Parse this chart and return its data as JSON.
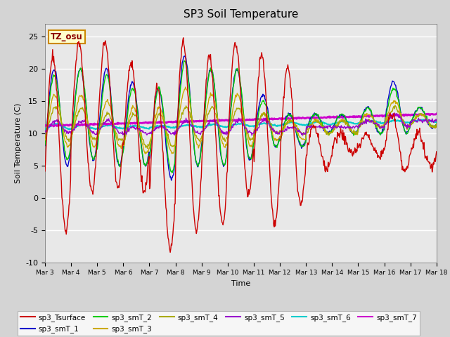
{
  "title": "SP3 Soil Temperature",
  "xlabel": "Time",
  "ylabel": "Soil Temperature (C)",
  "ylim": [
    -10,
    27
  ],
  "xlim": [
    0,
    15
  ],
  "annotation": "TZ_osu",
  "bg_color": "#e8e8e8",
  "xtick_labels": [
    "Mar 3",
    "Mar 4",
    "Mar 5",
    "Mar 6",
    "Mar 7",
    "Mar 8",
    "Mar 9",
    "Mar 10",
    "Mar 11",
    "Mar 12",
    "Mar 13",
    "Mar 14",
    "Mar 15",
    "Mar 16",
    "Mar 17",
    "Mar 18"
  ],
  "xtick_positions": [
    0,
    1,
    2,
    3,
    4,
    5,
    6,
    7,
    8,
    9,
    10,
    11,
    12,
    13,
    14,
    15
  ],
  "ytick_labels": [
    "-10",
    "-5",
    "0",
    "5",
    "10",
    "15",
    "20",
    "25"
  ],
  "ytick_positions": [
    -10,
    -5,
    0,
    5,
    10,
    15,
    20,
    25
  ],
  "series_colors": {
    "sp3_Tsurface": "#cc0000",
    "sp3_smT_1": "#0000cc",
    "sp3_smT_2": "#00cc00",
    "sp3_smT_3": "#ccaa00",
    "sp3_smT_4": "#aaaa00",
    "sp3_smT_5": "#9900cc",
    "sp3_smT_6": "#00cccc",
    "sp3_smT_7": "#cc00cc"
  }
}
